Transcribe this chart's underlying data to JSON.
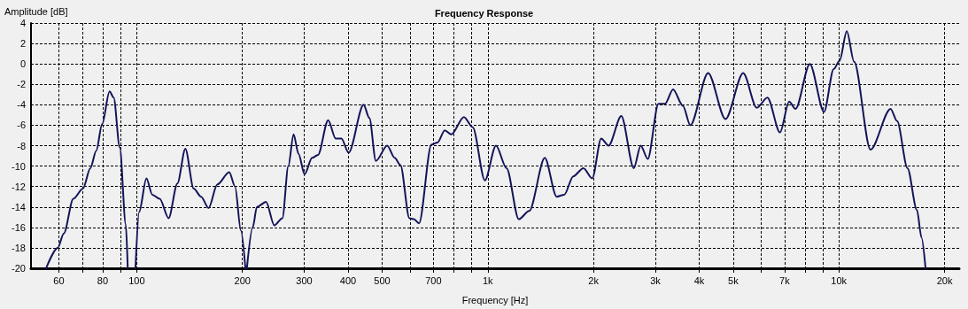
{
  "chart_data": {
    "type": "line",
    "title": "Frequency Response",
    "xlabel": "Frequency [Hz]",
    "ylabel": "Amplitude [dB]",
    "log": "x",
    "grid": true,
    "marker": "none",
    "line_style": "solid",
    "xlim": [
      50,
      22000
    ],
    "xticks": [
      60,
      {
        "value": 70,
        "label": null
      },
      80,
      {
        "value": 90,
        "label": null
      },
      100,
      200,
      300,
      400,
      500,
      {
        "value": 600,
        "label": null
      },
      700,
      {
        "value": 800,
        "label": null
      },
      {
        "value": 900,
        "label": null
      },
      {
        "value": 1000,
        "label": "1k"
      },
      {
        "value": 2000,
        "label": "2k"
      },
      {
        "value": 3000,
        "label": "3k"
      },
      {
        "value": 4000,
        "label": "4k"
      },
      {
        "value": 5000,
        "label": "5k"
      },
      {
        "value": 6000,
        "label": null
      },
      {
        "value": 7000,
        "label": "7k"
      },
      {
        "value": 8000,
        "label": null
      },
      {
        "value": 9000,
        "label": null
      },
      {
        "value": 10000,
        "label": "10k"
      },
      {
        "value": 20000,
        "label": "20k"
      }
    ],
    "ylim": [
      -20,
      4
    ],
    "yticks": [
      -20,
      -18,
      -16,
      -14,
      -12,
      -10,
      -8,
      -6,
      -4,
      -2,
      0,
      2,
      4
    ],
    "series": [
      {
        "color": "#14145a",
        "x": [
          55.2,
          59.6,
          62,
          66,
          70.3,
          73.8,
          76.7,
          79.7,
          83.7,
          86,
          89.5,
          93.1,
          94.3,
          97,
          99.2,
          101.6,
          106.6,
          110.8,
          116.3,
          123.3,
          130.6,
          137.6,
          145.3,
          152.6,
          160.2,
          169.7,
          183.5,
          190.6,
          198,
          204,
          205,
          206,
          214,
          220,
          233.6,
          246.6,
          260,
          270.3,
          279.8,
          289,
          300.7,
          315.9,
          328.4,
          351,
          368.6,
          383,
          401.4,
          442.8,
          460,
          480,
          517,
          543,
          564,
          598,
          616,
          637,
          691,
          719,
          754,
          787,
          855,
          906,
          981,
          1055,
          1131,
          1225,
          1312,
          1453,
          1571,
          1651,
          1751,
          1872,
          1984,
          2103,
          2208,
          2400,
          2605,
          2726,
          2855,
          3062,
          3198,
          3370,
          3595,
          3774,
          4241,
          4753,
          5338,
          5837,
          6258,
          6795,
          7216,
          7525,
          8264,
          9070,
          9665,
          10040,
          10530,
          11050,
          12300,
          14030,
          14650,
          15680,
          16680,
          17190,
          17650
        ],
        "values": [
          -20,
          -18,
          -16.6,
          -13.2,
          -12.2,
          -10.2,
          -8.5,
          -5.9,
          -2.7,
          -3.3,
          -8.2,
          -15.7,
          -20,
          null,
          -20,
          -14.5,
          -11.2,
          -12.8,
          -13.2,
          -15.1,
          -11.7,
          -8.3,
          -12.2,
          -13,
          -14.1,
          -11.8,
          -10.6,
          -12,
          -16.3,
          -20,
          null,
          -20,
          -16,
          -14,
          -13.5,
          -15.8,
          -15.1,
          -10,
          -6.9,
          -8.8,
          -10.8,
          -9.2,
          -8.9,
          -5.5,
          -7.3,
          -7.3,
          -8.7,
          -4,
          -5.3,
          -9.5,
          -8,
          -9.2,
          -9.9,
          -15.1,
          -15.2,
          -15.6,
          -7.9,
          -7.7,
          -6.5,
          -6.9,
          -5.2,
          -6.2,
          -11.4,
          -8,
          -10.2,
          -15.2,
          -14.4,
          -9.2,
          -13,
          -12.8,
          -11,
          -10.2,
          -11.2,
          -7.3,
          -8,
          -5.1,
          -10.2,
          -8,
          -9.3,
          -3.9,
          -3.9,
          -2.5,
          -4.1,
          -6,
          -0.9,
          -5.4,
          -0.9,
          -4.3,
          -3.3,
          -6.7,
          -3.7,
          -4.4,
          0,
          -4.7,
          -0.5,
          0.3,
          3.2,
          0.2,
          -8.4,
          -4.4,
          -5.6,
          -10.2,
          -14.3,
          -17,
          -20
        ]
      }
    ]
  }
}
